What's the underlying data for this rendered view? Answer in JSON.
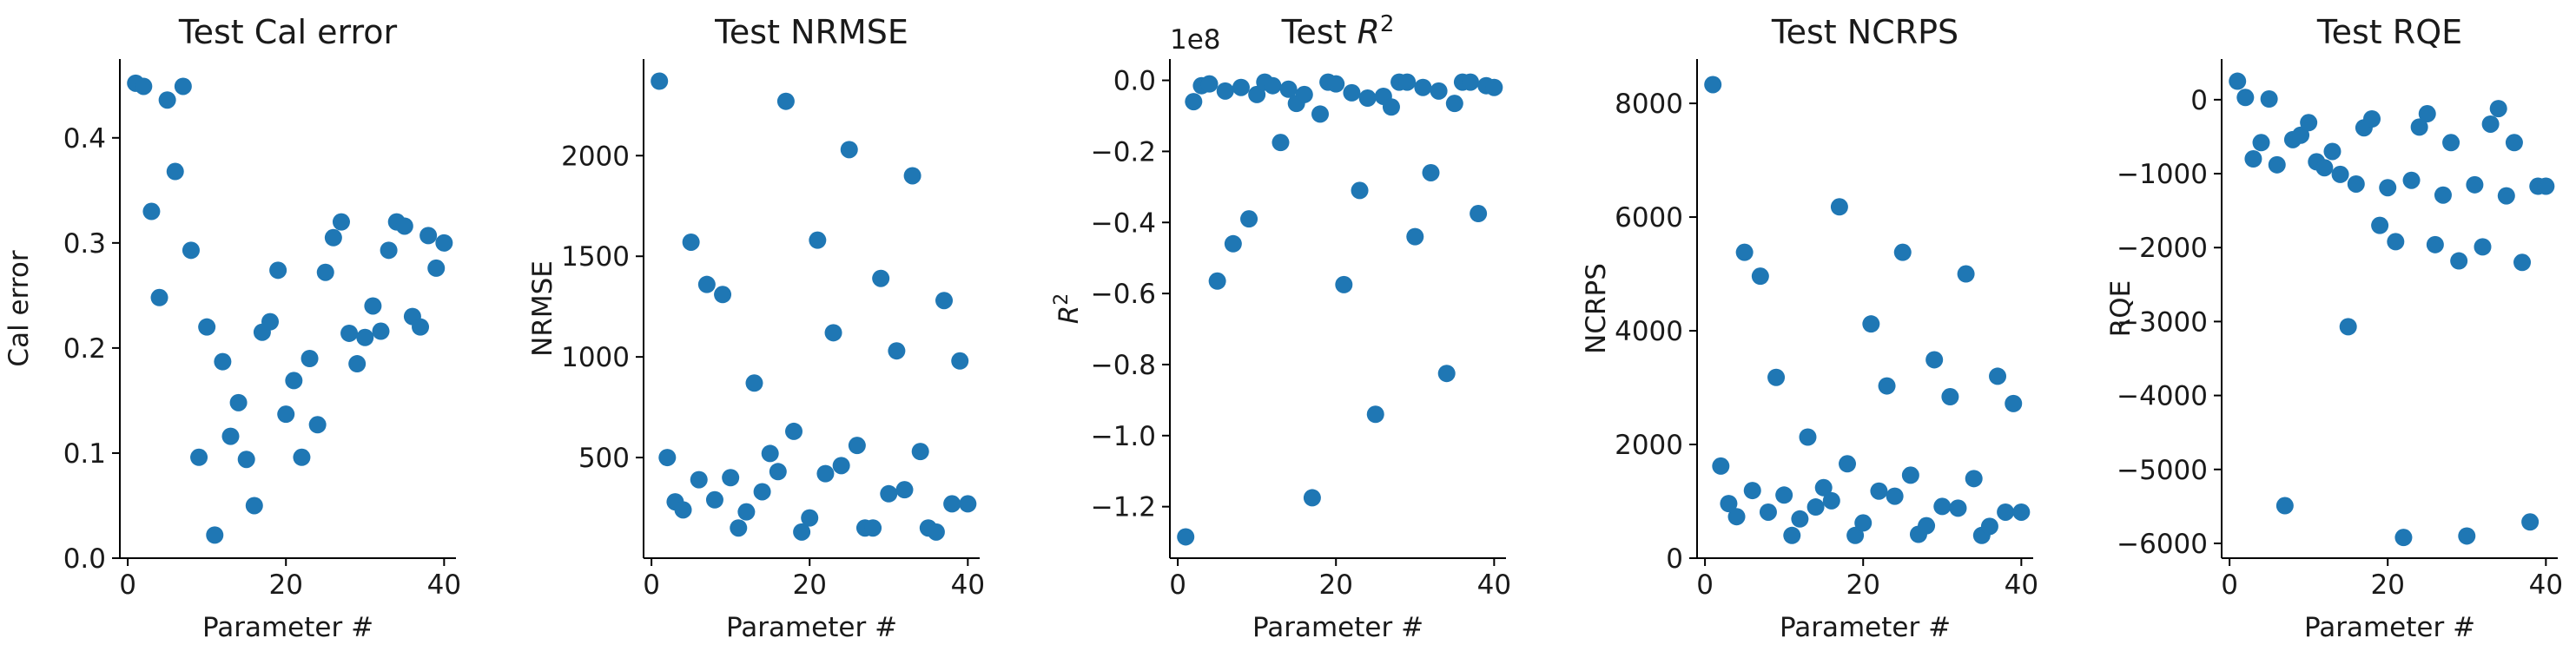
{
  "figure": {
    "point_color": "#1f77b4"
  },
  "chart_data": [
    {
      "type": "scatter",
      "title": "Test Cal error",
      "xlabel": "Parameter #",
      "ylabel": "Cal error",
      "xlim": [
        -1,
        41.5
      ],
      "ylim": [
        0,
        0.475
      ],
      "xticks": [
        0,
        20,
        40
      ],
      "xtick_labels": [
        "0",
        "20",
        "40"
      ],
      "yticks": [
        0,
        0.1,
        0.2,
        0.3,
        0.4
      ],
      "ytick_labels": [
        "0.0",
        "0.1",
        "0.2",
        "0.3",
        "0.4"
      ],
      "grid": false,
      "legend": "none",
      "x": [
        1,
        2,
        3,
        4,
        5,
        6,
        7,
        8,
        9,
        10,
        11,
        12,
        13,
        14,
        15,
        16,
        17,
        18,
        19,
        20,
        21,
        22,
        23,
        24,
        25,
        26,
        27,
        28,
        29,
        30,
        31,
        32,
        33,
        34,
        35,
        36,
        37,
        38,
        39,
        40
      ],
      "y": [
        0.452,
        0.449,
        0.33,
        0.248,
        0.436,
        0.368,
        0.449,
        0.293,
        0.096,
        0.22,
        0.022,
        0.187,
        0.116,
        0.148,
        0.094,
        0.05,
        0.215,
        0.225,
        0.274,
        0.137,
        0.169,
        0.096,
        0.19,
        0.127,
        0.272,
        0.305,
        0.32,
        0.214,
        0.185,
        0.21,
        0.24,
        0.216,
        0.293,
        0.32,
        0.316,
        0.23,
        0.22,
        0.307,
        0.276,
        0.3
      ]
    },
    {
      "type": "scatter",
      "title": "Test NRMSE",
      "xlabel": "Parameter #",
      "ylabel": "NRMSE",
      "xlim": [
        -1,
        41.5
      ],
      "ylim": [
        0,
        2480
      ],
      "xticks": [
        0,
        20,
        40
      ],
      "xtick_labels": [
        "0",
        "20",
        "40"
      ],
      "yticks": [
        500,
        1000,
        1500,
        2000
      ],
      "ytick_labels": [
        "500",
        "1000",
        "1500",
        "2000"
      ],
      "grid": false,
      "legend": "none",
      "x": [
        1,
        2,
        3,
        4,
        5,
        6,
        7,
        8,
        9,
        10,
        11,
        12,
        13,
        14,
        15,
        16,
        17,
        18,
        19,
        20,
        21,
        22,
        23,
        24,
        25,
        26,
        27,
        28,
        29,
        30,
        31,
        32,
        33,
        34,
        35,
        36,
        37,
        38,
        39,
        40
      ],
      "y": [
        2370,
        500,
        280,
        240,
        1570,
        390,
        1360,
        290,
        1310,
        400,
        150,
        230,
        870,
        330,
        520,
        430,
        2270,
        630,
        130,
        200,
        1580,
        420,
        1120,
        460,
        2030,
        560,
        150,
        150,
        1390,
        320,
        1030,
        340,
        1900,
        530,
        150,
        130,
        1280,
        270,
        980,
        270
      ]
    },
    {
      "type": "scatter",
      "title": "Test R^2",
      "title_parts": [
        "Test ",
        "R",
        "2"
      ],
      "xlabel": "Parameter #",
      "ylabel": "R^2",
      "ylabel_parts": [
        "R",
        "2"
      ],
      "offset_text": "1e8",
      "xlim": [
        -1,
        41.5
      ],
      "ylim": [
        -1.345,
        0.06
      ],
      "xticks": [
        0,
        20,
        40
      ],
      "xtick_labels": [
        "0",
        "20",
        "40"
      ],
      "yticks": [
        -1.2,
        -1.0,
        -0.8,
        -0.6,
        -0.4,
        -0.2,
        0.0
      ],
      "ytick_labels": [
        "−1.2",
        "−1.0",
        "−0.8",
        "−0.6",
        "−0.4",
        "−0.2",
        "0.0"
      ],
      "grid": false,
      "legend": "none",
      "x": [
        1,
        2,
        3,
        4,
        5,
        6,
        7,
        8,
        9,
        10,
        11,
        12,
        13,
        14,
        15,
        16,
        17,
        18,
        19,
        20,
        21,
        22,
        23,
        24,
        25,
        26,
        27,
        28,
        29,
        30,
        31,
        32,
        33,
        34,
        35,
        36,
        37,
        38,
        39,
        40
      ],
      "y": [
        -1.285,
        -0.06,
        -0.015,
        -0.01,
        -0.565,
        -0.03,
        -0.46,
        -0.02,
        -0.39,
        -0.04,
        -0.005,
        -0.015,
        -0.175,
        -0.025,
        -0.065,
        -0.04,
        -1.175,
        -0.095,
        -0.005,
        -0.01,
        -0.575,
        -0.035,
        -0.31,
        -0.05,
        -0.94,
        -0.045,
        -0.075,
        -0.005,
        -0.005,
        -0.44,
        -0.02,
        -0.26,
        -0.03,
        -0.825,
        -0.065,
        -0.005,
        -0.005,
        -0.375,
        -0.015,
        -0.02
      ]
    },
    {
      "type": "scatter",
      "title": "Test NCRPS",
      "xlabel": "Parameter #",
      "ylabel": "NCRPS",
      "xlim": [
        -1,
        41.5
      ],
      "ylim": [
        0,
        8780
      ],
      "xticks": [
        0,
        20,
        40
      ],
      "xtick_labels": [
        "0",
        "20",
        "40"
      ],
      "yticks": [
        0,
        2000,
        4000,
        6000,
        8000
      ],
      "ytick_labels": [
        "0",
        "2000",
        "4000",
        "6000",
        "8000"
      ],
      "grid": false,
      "legend": "none",
      "x": [
        1,
        2,
        3,
        4,
        5,
        6,
        7,
        8,
        9,
        10,
        11,
        12,
        13,
        14,
        15,
        16,
        17,
        18,
        19,
        20,
        21,
        22,
        23,
        24,
        25,
        26,
        27,
        28,
        29,
        30,
        31,
        32,
        33,
        34,
        35,
        36,
        37,
        38,
        39,
        40
      ],
      "y": [
        8330,
        1620,
        960,
        730,
        5380,
        1190,
        4960,
        810,
        3180,
        1110,
        400,
        690,
        2130,
        900,
        1240,
        1010,
        6180,
        1660,
        400,
        620,
        4120,
        1180,
        3030,
        1090,
        5380,
        1460,
        420,
        570,
        3490,
        910,
        2840,
        880,
        5000,
        1400,
        400,
        560,
        3200,
        810,
        2720,
        810
      ]
    },
    {
      "type": "scatter",
      "title": "Test RQE",
      "xlabel": "Parameter #",
      "ylabel": "RQE",
      "xlim": [
        -1,
        41.5
      ],
      "ylim": [
        -6200,
        550
      ],
      "xticks": [
        0,
        20,
        40
      ],
      "xtick_labels": [
        "0",
        "20",
        "40"
      ],
      "yticks": [
        -6000,
        -5000,
        -4000,
        -3000,
        -2000,
        -1000,
        0
      ],
      "ytick_labels": [
        "−6000",
        "−5000",
        "−4000",
        "−3000",
        "−2000",
        "−1000",
        "0"
      ],
      "grid": false,
      "legend": "none",
      "x": [
        1,
        2,
        3,
        4,
        5,
        6,
        7,
        8,
        9,
        10,
        11,
        12,
        13,
        14,
        15,
        16,
        17,
        18,
        19,
        20,
        21,
        22,
        23,
        24,
        25,
        26,
        27,
        28,
        29,
        30,
        31,
        32,
        33,
        34,
        35,
        36,
        37,
        38,
        39,
        40
      ],
      "y": [
        250,
        30,
        -800,
        -580,
        10,
        -880,
        -5490,
        -540,
        -480,
        -310,
        -840,
        -920,
        -700,
        -1010,
        -3070,
        -1140,
        -380,
        -260,
        -1700,
        -1190,
        -1920,
        -5920,
        -1090,
        -370,
        -190,
        -1960,
        -1290,
        -580,
        -2180,
        -5900,
        -1150,
        -1990,
        -330,
        -120,
        -1300,
        -580,
        -2200,
        -5710,
        -1170,
        -1170
      ]
    }
  ]
}
